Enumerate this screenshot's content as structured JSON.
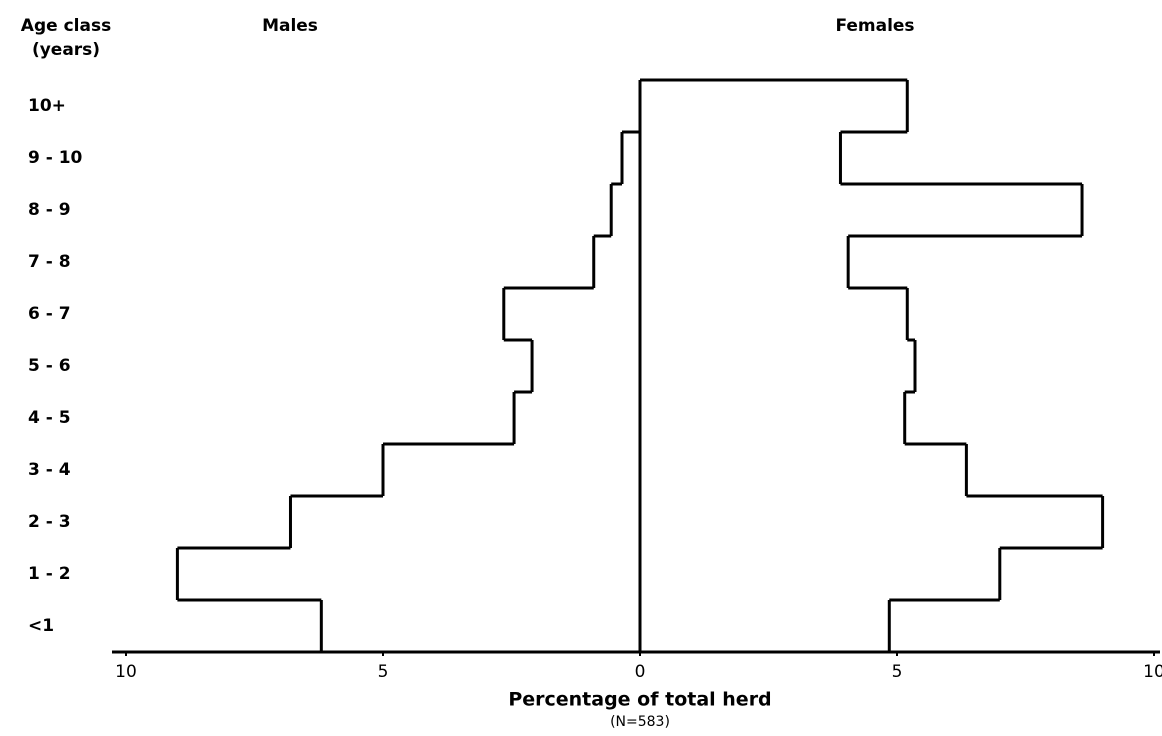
{
  "chart_data": {
    "type": "population-pyramid",
    "y_axis_label": [
      "Age class",
      "(years)"
    ],
    "x_axis_label": "Percentage of total herd",
    "x_axis_note": "(N=583)",
    "categories": [
      "10+",
      "9 - 10",
      "8 - 9",
      "7 - 8",
      "6 - 7",
      "5 - 6",
      "4 - 5",
      "3 - 4",
      "2 - 3",
      "1 - 2",
      "<1"
    ],
    "series": [
      {
        "name": "Males",
        "color": "#000000",
        "side": "left",
        "values": [
          0,
          0.35,
          0.56,
          0.9,
          2.65,
          2.1,
          2.45,
          5.0,
          6.8,
          9.0,
          6.2
        ]
      },
      {
        "name": "Females",
        "color": "#000000",
        "side": "right",
        "values": [
          5.2,
          3.9,
          8.6,
          4.05,
          5.2,
          5.35,
          5.15,
          6.35,
          9.0,
          7.0,
          4.85
        ]
      }
    ],
    "xlim": [
      -10,
      10
    ],
    "xticks": [
      {
        "value": -10,
        "label": "10"
      },
      {
        "value": -5,
        "label": "5"
      },
      0,
      5,
      10
    ]
  }
}
